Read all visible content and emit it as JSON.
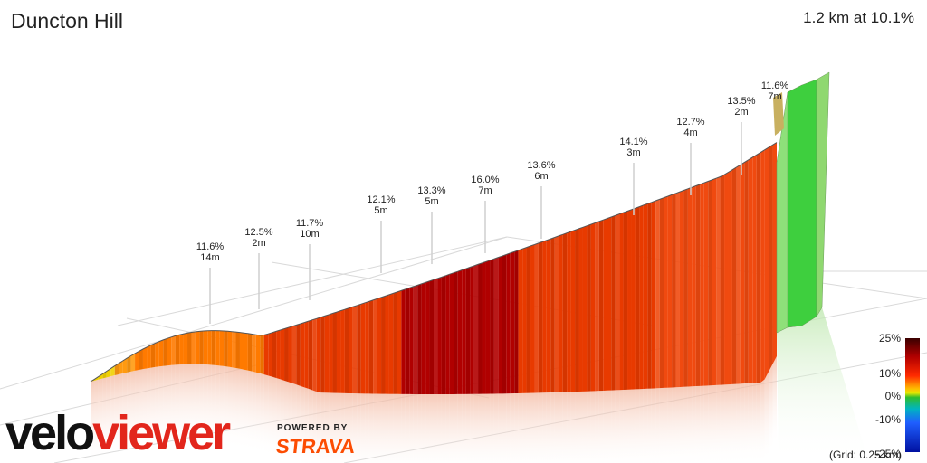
{
  "title": "Duncton Hill",
  "summary": "1.2 km at 10.1%",
  "legend": {
    "labels": [
      "25%",
      "10%",
      "0%",
      "-10%",
      "-25%"
    ],
    "grid_note": "(Grid: 0.25 km)"
  },
  "branding": {
    "logo_velo": "velo",
    "logo_viewer": "viewer",
    "powered_by": "POWERED BY",
    "strava": "STRAVA"
  },
  "colors": {
    "steep": "#b00000",
    "mid": "#e83a00",
    "moderate": "#ff7a00",
    "easy": "#f0d000",
    "flat": "#3ecf3e",
    "accent_red": "#e2261c",
    "strava_orange": "#fc4c02"
  },
  "chart_data": {
    "type": "area",
    "title": "Duncton Hill",
    "xlabel": "",
    "ylabel": "",
    "grid": true,
    "legend": "right",
    "segments": [
      {
        "gradient": "11.6%",
        "length": "14m"
      },
      {
        "gradient": "12.5%",
        "length": "2m"
      },
      {
        "gradient": "11.7%",
        "length": "10m"
      },
      {
        "gradient": "12.1%",
        "length": "5m"
      },
      {
        "gradient": "13.3%",
        "length": "5m"
      },
      {
        "gradient": "16.0%",
        "length": "7m"
      },
      {
        "gradient": "13.6%",
        "length": "6m"
      },
      {
        "gradient": "14.1%",
        "length": "3m"
      },
      {
        "gradient": "12.7%",
        "length": "4m"
      },
      {
        "gradient": "13.5%",
        "length": "2m"
      },
      {
        "gradient": "11.6%",
        "length": "7m"
      }
    ]
  }
}
